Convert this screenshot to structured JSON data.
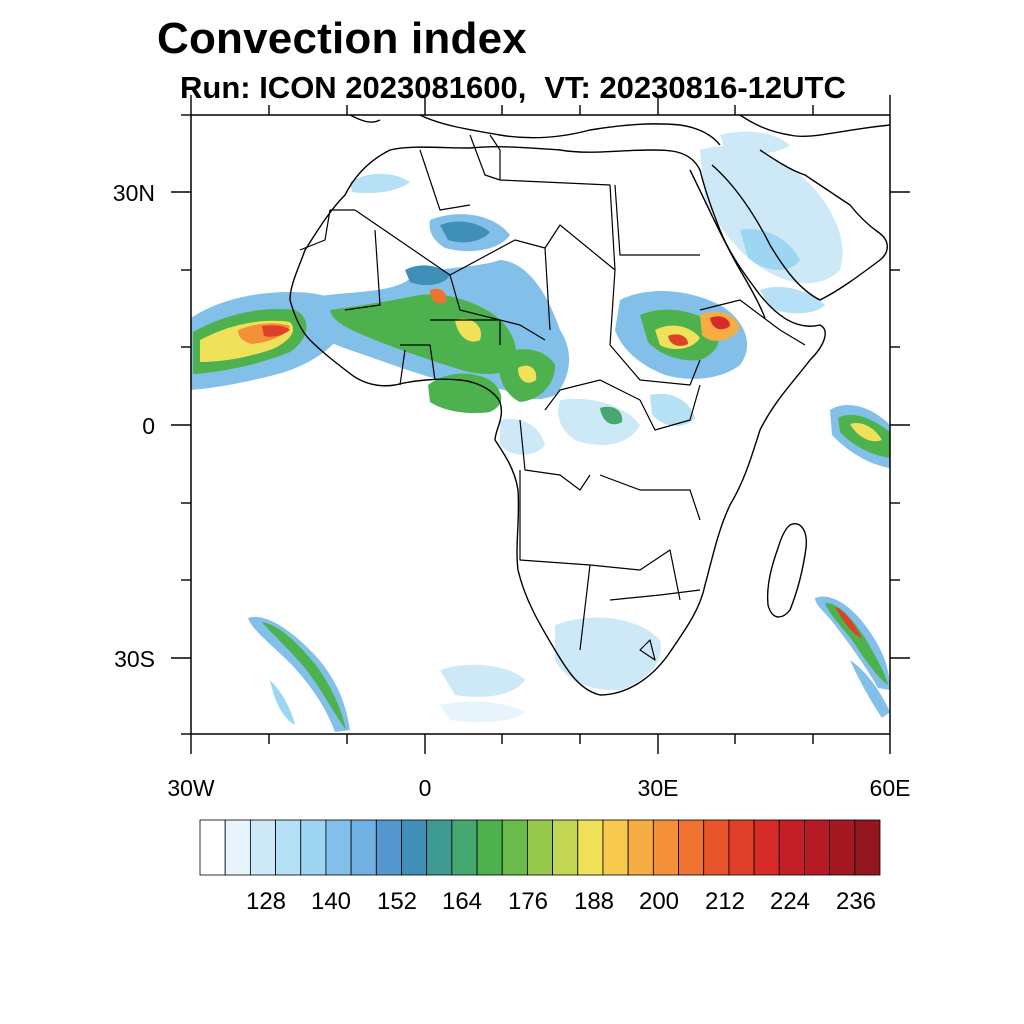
{
  "title": "Convection index",
  "subtitle": {
    "run": "Run: ICON 2023081600,",
    "vt": "VT: 20230816-12UTC"
  },
  "axes": {
    "lat_labels": [
      "30N",
      "0",
      "30S"
    ],
    "lon_labels": [
      "30W",
      "0",
      "30E",
      "60E"
    ]
  },
  "colorbar": {
    "labels": [
      "128",
      "140",
      "152",
      "164",
      "176",
      "188",
      "200",
      "212",
      "224",
      "236"
    ],
    "colors": [
      "#ffffff",
      "#e8f4fb",
      "#cde9f7",
      "#b6e0f5",
      "#9dd6f2",
      "#82c0ea",
      "#72b0e2",
      "#5598cf",
      "#3f8fb8",
      "#3e9b94",
      "#47a86f",
      "#4db14d",
      "#6bbb4a",
      "#97c94f",
      "#c3d653",
      "#efe25a",
      "#f8c94f",
      "#f7ad44",
      "#f49138",
      "#ef7230",
      "#e9552b",
      "#e04029",
      "#d62b28",
      "#c41f27",
      "#b51a25",
      "#a51822",
      "#93161f"
    ]
  }
}
